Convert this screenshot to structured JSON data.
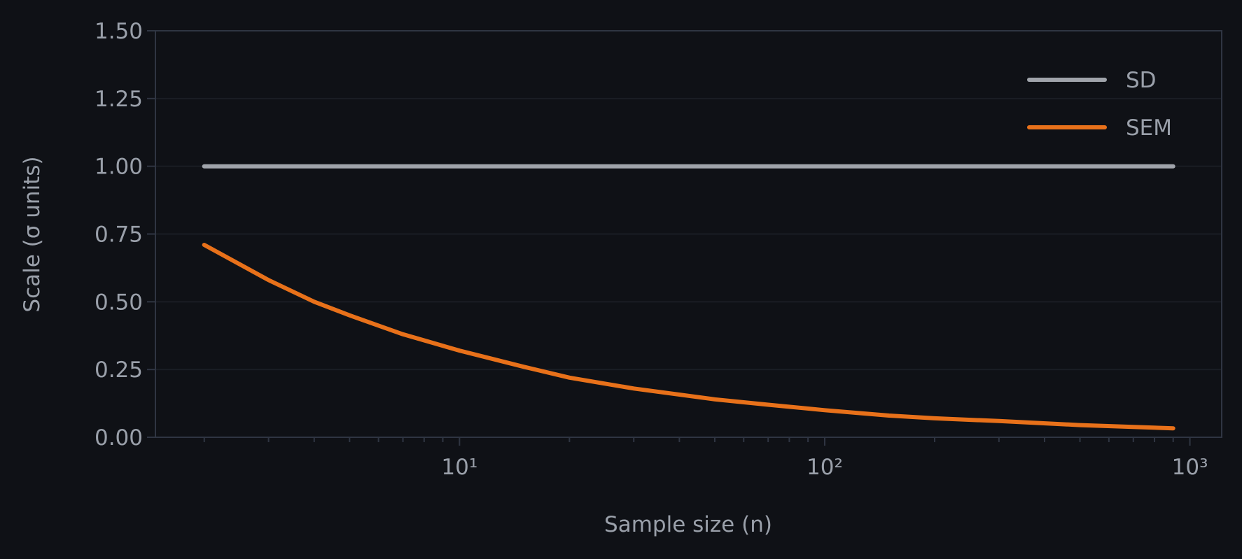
{
  "chart_data": {
    "type": "line",
    "x_label": "Sample size (n)",
    "y_label": "Scale (σ units)",
    "x_scale": "log",
    "x": [
      2,
      3,
      4,
      5,
      7,
      10,
      15,
      20,
      30,
      50,
      70,
      100,
      150,
      200,
      300,
      500,
      700,
      900
    ],
    "series": [
      {
        "name": "SD",
        "color": "#a0a4ab",
        "values": [
          1,
          1,
          1,
          1,
          1,
          1,
          1,
          1,
          1,
          1,
          1,
          1,
          1,
          1,
          1,
          1,
          1,
          1
        ]
      },
      {
        "name": "SEM",
        "color": "#e8711a",
        "values": [
          0.71,
          0.58,
          0.5,
          0.45,
          0.38,
          0.32,
          0.26,
          0.22,
          0.18,
          0.14,
          0.12,
          0.1,
          0.08,
          0.07,
          0.06,
          0.045,
          0.038,
          0.033
        ]
      }
    ],
    "xlim": [
      1.47,
      1222
    ],
    "xticks": [
      {
        "value": 10,
        "label": "10¹"
      },
      {
        "value": 100,
        "label": "10²"
      },
      {
        "value": 1000,
        "label": "10³"
      }
    ],
    "xminorticks": [
      2,
      3,
      4,
      5,
      6,
      7,
      8,
      9,
      20,
      30,
      40,
      50,
      60,
      70,
      80,
      90,
      200,
      300,
      400,
      500,
      600,
      700,
      800,
      900
    ],
    "ylim": [
      0,
      1.5
    ],
    "yticks": [
      {
        "value": 0,
        "label": "0.00"
      },
      {
        "value": 0.25,
        "label": "0.25"
      },
      {
        "value": 0.5,
        "label": "0.50"
      },
      {
        "value": 0.75,
        "label": "0.75"
      },
      {
        "value": 1,
        "label": "1.00"
      },
      {
        "value": 1.25,
        "label": "1.25"
      },
      {
        "value": 1.5,
        "label": "1.50"
      }
    ],
    "grid": true,
    "legend_position": "upper right"
  }
}
